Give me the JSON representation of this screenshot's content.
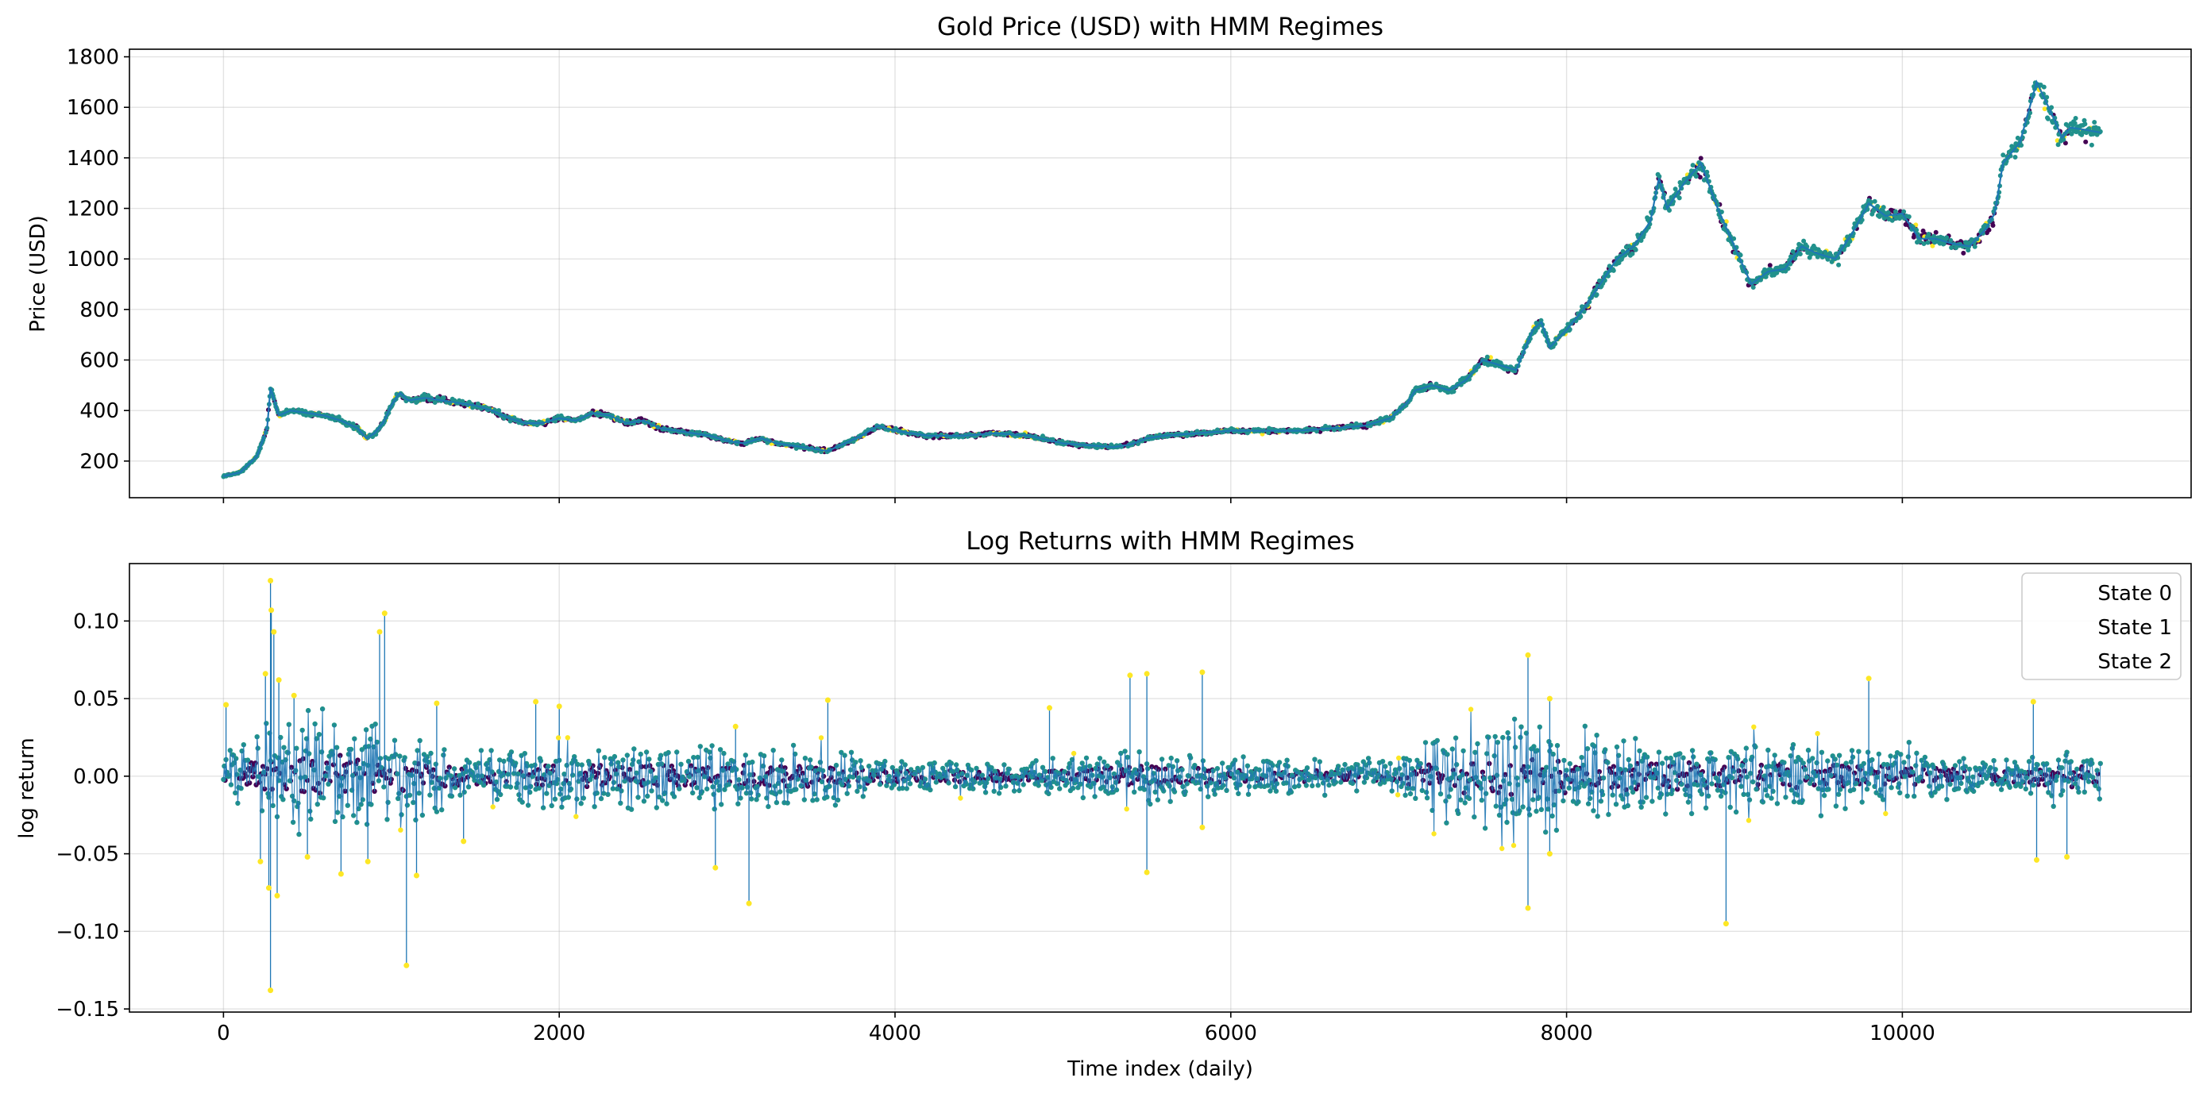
{
  "chart_data": [
    {
      "type": "line",
      "title": "Gold Price (USD) with HMM Regimes",
      "xlabel": "",
      "ylabel": "Price (USD)",
      "xlim": [
        -560,
        11720
      ],
      "ylim": [
        55,
        1830
      ],
      "grid": true,
      "x_ticks": [
        0,
        2000,
        4000,
        6000,
        8000,
        10000
      ],
      "x_tick_labels_visible": false,
      "y_ticks": [
        200,
        400,
        600,
        800,
        1000,
        1200,
        1400,
        1600,
        1800
      ],
      "y_tick_labels": [
        "200",
        "400",
        "600",
        "800",
        "1000",
        "1200",
        "1400",
        "1600",
        "1800"
      ],
      "series": [
        {
          "style": "line with regime-colored markers",
          "line_color": "#1f77b4",
          "points": [
            [
              0,
              140
            ],
            [
              100,
              155
            ],
            [
              200,
              220
            ],
            [
              260,
              330
            ],
            [
              280,
              490
            ],
            [
              330,
              380
            ],
            [
              400,
              400
            ],
            [
              500,
              390
            ],
            [
              600,
              380
            ],
            [
              700,
              360
            ],
            [
              800,
              330
            ],
            [
              850,
              290
            ],
            [
              900,
              310
            ],
            [
              950,
              350
            ],
            [
              1000,
              420
            ],
            [
              1050,
              470
            ],
            [
              1100,
              440
            ],
            [
              1200,
              450
            ],
            [
              1300,
              440
            ],
            [
              1400,
              430
            ],
            [
              1500,
              420
            ],
            [
              1600,
              400
            ],
            [
              1700,
              370
            ],
            [
              1800,
              350
            ],
            [
              1900,
              350
            ],
            [
              2000,
              370
            ],
            [
              2100,
              360
            ],
            [
              2200,
              390
            ],
            [
              2300,
              380
            ],
            [
              2400,
              350
            ],
            [
              2500,
              360
            ],
            [
              2600,
              330
            ],
            [
              2700,
              320
            ],
            [
              2800,
              310
            ],
            [
              2900,
              300
            ],
            [
              3000,
              280
            ],
            [
              3100,
              270
            ],
            [
              3200,
              290
            ],
            [
              3300,
              270
            ],
            [
              3400,
              260
            ],
            [
              3500,
              250
            ],
            [
              3600,
              240
            ],
            [
              3700,
              270
            ],
            [
              3800,
              300
            ],
            [
              3900,
              340
            ],
            [
              4000,
              320
            ],
            [
              4200,
              300
            ],
            [
              4400,
              300
            ],
            [
              4600,
              310
            ],
            [
              4800,
              300
            ],
            [
              5000,
              270
            ],
            [
              5200,
              260
            ],
            [
              5300,
              255
            ],
            [
              5400,
              265
            ],
            [
              5500,
              290
            ],
            [
              5600,
              300
            ],
            [
              5800,
              310
            ],
            [
              6000,
              320
            ],
            [
              6200,
              320
            ],
            [
              6400,
              320
            ],
            [
              6600,
              330
            ],
            [
              6800,
              340
            ],
            [
              6950,
              370
            ],
            [
              7050,
              430
            ],
            [
              7100,
              480
            ],
            [
              7200,
              500
            ],
            [
              7300,
              480
            ],
            [
              7400,
              520
            ],
            [
              7500,
              600
            ],
            [
              7600,
              580
            ],
            [
              7700,
              560
            ],
            [
              7800,
              720
            ],
            [
              7850,
              750
            ],
            [
              7900,
              650
            ],
            [
              8000,
              720
            ],
            [
              8100,
              800
            ],
            [
              8200,
              900
            ],
            [
              8300,
              1000
            ],
            [
              8400,
              1050
            ],
            [
              8500,
              1150
            ],
            [
              8550,
              1320
            ],
            [
              8600,
              1200
            ],
            [
              8700,
              1300
            ],
            [
              8800,
              1380
            ],
            [
              8900,
              1200
            ],
            [
              9000,
              1050
            ],
            [
              9100,
              900
            ],
            [
              9200,
              950
            ],
            [
              9300,
              960
            ],
            [
              9400,
              1050
            ],
            [
              9500,
              1020
            ],
            [
              9600,
              1000
            ],
            [
              9700,
              1100
            ],
            [
              9800,
              1220
            ],
            [
              9900,
              1170
            ],
            [
              10000,
              1180
            ],
            [
              10100,
              1080
            ],
            [
              10200,
              1080
            ],
            [
              10300,
              1060
            ],
            [
              10400,
              1050
            ],
            [
              10500,
              1120
            ],
            [
              10550,
              1180
            ],
            [
              10600,
              1380
            ],
            [
              10700,
              1460
            ],
            [
              10800,
              1700
            ],
            [
              10900,
              1560
            ],
            [
              10950,
              1480
            ],
            [
              11000,
              1520
            ],
            [
              11100,
              1510
            ],
            [
              11180,
              1500
            ]
          ]
        }
      ],
      "regime_colors": {
        "State 0": "#440154",
        "State 1": "#21918c",
        "State 2": "#fde725"
      }
    },
    {
      "type": "line",
      "title": "Log Returns with HMM Regimes",
      "xlabel": "Time index (daily)",
      "ylabel": "log return",
      "xlim": [
        -560,
        11720
      ],
      "ylim": [
        -0.152,
        0.137
      ],
      "grid": true,
      "x_ticks": [
        0,
        2000,
        4000,
        6000,
        8000,
        10000
      ],
      "x_tick_labels": [
        "0",
        "2000",
        "4000",
        "6000",
        "8000",
        "10000"
      ],
      "y_ticks": [
        -0.15,
        -0.1,
        -0.05,
        0.0,
        0.05,
        0.1
      ],
      "y_tick_labels": [
        "−0.15",
        "−0.10",
        "−0.05",
        "0.00",
        "0.05",
        "0.10"
      ],
      "line_color": "#1f77b4",
      "volatility_envelope": [
        [
          0,
          0.015
        ],
        [
          500,
          0.045
        ],
        [
          1000,
          0.03
        ],
        [
          1500,
          0.015
        ],
        [
          2000,
          0.02
        ],
        [
          3000,
          0.02
        ],
        [
          3500,
          0.02
        ],
        [
          4000,
          0.012
        ],
        [
          5000,
          0.01
        ],
        [
          5500,
          0.02
        ],
        [
          6000,
          0.012
        ],
        [
          7000,
          0.01
        ],
        [
          7200,
          0.03
        ],
        [
          7800,
          0.04
        ],
        [
          8000,
          0.03
        ],
        [
          8500,
          0.025
        ],
        [
          9000,
          0.025
        ],
        [
          10000,
          0.02
        ],
        [
          10500,
          0.01
        ],
        [
          11000,
          0.02
        ],
        [
          11180,
          0.015
        ]
      ],
      "extreme_points": [
        [
          15,
          0.046
        ],
        [
          280,
          0.126
        ],
        [
          285,
          0.107
        ],
        [
          300,
          0.093
        ],
        [
          250,
          0.066
        ],
        [
          330,
          0.062
        ],
        [
          420,
          0.052
        ],
        [
          960,
          0.105
        ],
        [
          930,
          0.093
        ],
        [
          1270,
          0.047
        ],
        [
          1860,
          0.048
        ],
        [
          2000,
          0.045
        ],
        [
          3050,
          0.032
        ],
        [
          3600,
          0.049
        ],
        [
          4920,
          0.044
        ],
        [
          5400,
          0.065
        ],
        [
          5500,
          0.066
        ],
        [
          5830,
          0.067
        ],
        [
          7770,
          0.078
        ],
        [
          7900,
          0.05
        ],
        [
          9800,
          0.063
        ],
        [
          10780,
          0.048
        ],
        [
          280,
          -0.138
        ],
        [
          320,
          -0.077
        ],
        [
          270,
          -0.072
        ],
        [
          220,
          -0.055
        ],
        [
          500,
          -0.052
        ],
        [
          700,
          -0.063
        ],
        [
          860,
          -0.055
        ],
        [
          1090,
          -0.122
        ],
        [
          1150,
          -0.064
        ],
        [
          1430,
          -0.042
        ],
        [
          2930,
          -0.059
        ],
        [
          3130,
          -0.082
        ],
        [
          5500,
          -0.062
        ],
        [
          5830,
          -0.033
        ],
        [
          7770,
          -0.085
        ],
        [
          7900,
          -0.05
        ],
        [
          8950,
          -0.095
        ],
        [
          10800,
          -0.054
        ],
        [
          10980,
          -0.052
        ]
      ],
      "regime_colors": {
        "State 0": "#440154",
        "State 1": "#21918c",
        "State 2": "#fde725"
      },
      "legend": {
        "placement": "top-right",
        "entries": [
          "State 0",
          "State 1",
          "State 2"
        ]
      }
    }
  ]
}
